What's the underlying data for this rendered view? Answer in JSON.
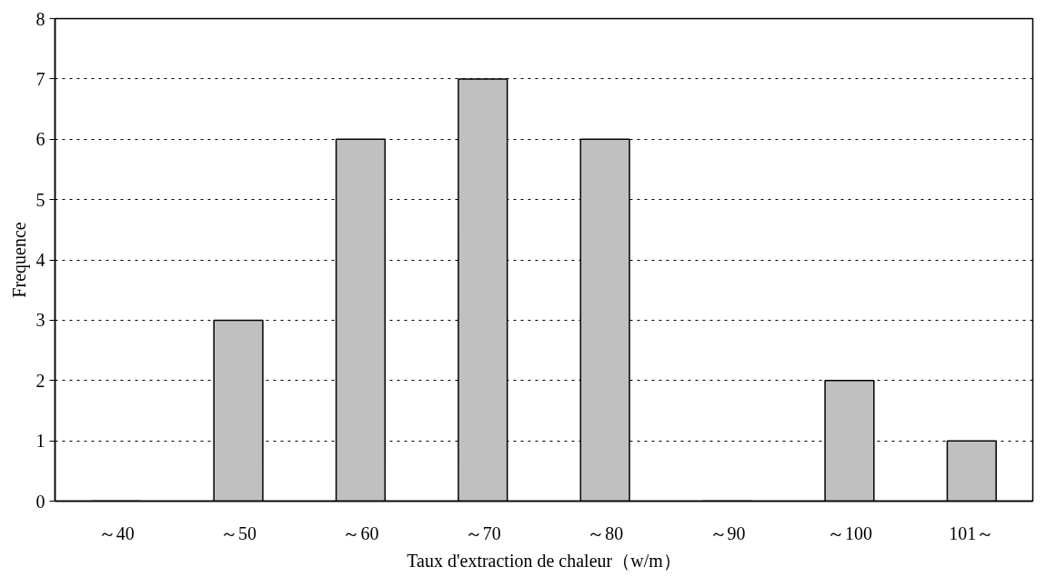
{
  "chart_data": {
    "type": "bar",
    "xlabel": "Taux d'extraction de chaleur（w/m）",
    "ylabel": "Frequence",
    "categories": [
      "～40",
      "～50",
      "～60",
      "～70",
      "～80",
      "～90",
      "～100",
      "101～"
    ],
    "values": [
      0,
      3,
      6,
      7,
      6,
      0,
      2,
      1
    ],
    "color": "#c0c0c0",
    "ylim": [
      0,
      8
    ],
    "yticks": [
      0,
      1,
      2,
      3,
      4,
      5,
      6,
      7,
      8
    ],
    "grid": "y",
    "line_style": "dashed"
  }
}
